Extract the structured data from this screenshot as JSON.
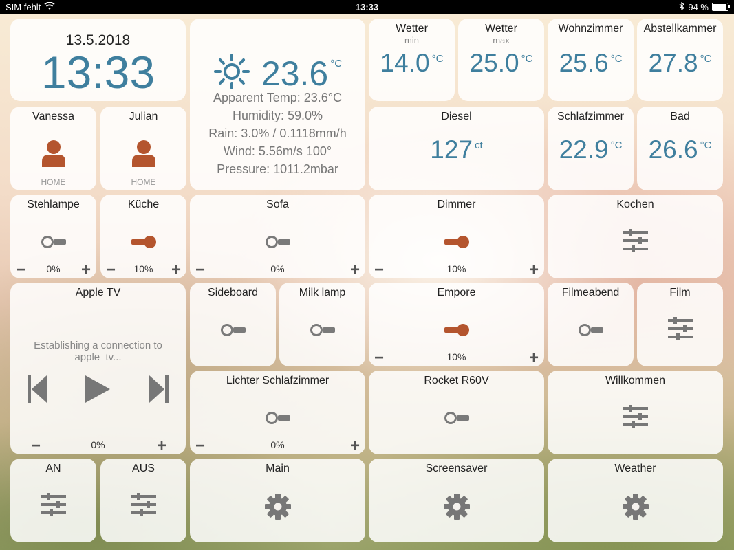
{
  "status_bar": {
    "carrier": "SIM fehlt",
    "time": "13:33",
    "battery": "94 %",
    "battery_level": 0.94
  },
  "clock": {
    "date": "13.5.2018",
    "time": "13:33"
  },
  "weather": {
    "temp": "23.6",
    "unit": "°C",
    "apparent": "Apparent Temp: 23.6°C",
    "humidity": "Humidity: 59.0%",
    "rain": "Rain: 3.0% / 0.1118mm/h",
    "wind": "Wind: 5.56m/s 100°",
    "pressure": "Pressure: 1011.2mbar",
    "icon": "sun-icon"
  },
  "sensors": {
    "wetter_min": {
      "title": "Wetter",
      "sub": "min",
      "value": "14.0",
      "unit": "°C"
    },
    "wetter_max": {
      "title": "Wetter",
      "sub": "max",
      "value": "25.0",
      "unit": "°C"
    },
    "wohnzimmer": {
      "title": "Wohnzimmer",
      "value": "25.6",
      "unit": "°C"
    },
    "abstellkammer": {
      "title": "Abstellkammer",
      "value": "27.8",
      "unit": "°C"
    },
    "diesel": {
      "title": "Diesel",
      "value": "127",
      "unit": "ct"
    },
    "schlafzimmer": {
      "title": "Schlafzimmer",
      "value": "22.9",
      "unit": "°C"
    },
    "bad": {
      "title": "Bad",
      "value": "26.6",
      "unit": "°C"
    }
  },
  "presence": {
    "vanessa": {
      "name": "Vanessa",
      "status": "HOME"
    },
    "julian": {
      "name": "Julian",
      "status": "HOME"
    }
  },
  "lights": {
    "stehlampe": {
      "title": "Stehlampe",
      "value": "0%",
      "on": false
    },
    "kueche": {
      "title": "Küche",
      "value": "10%",
      "on": true
    },
    "sofa": {
      "title": "Sofa",
      "value": "0%",
      "on": false
    },
    "dimmer": {
      "title": "Dimmer",
      "value": "10%",
      "on": true
    },
    "sideboard": {
      "title": "Sideboard",
      "on": false
    },
    "milk_lamp": {
      "title": "Milk lamp",
      "on": false
    },
    "empore": {
      "title": "Empore",
      "value": "10%",
      "on": true
    },
    "filmeabend": {
      "title": "Filmeabend",
      "on": false
    },
    "lichter_schlafzimmer": {
      "title": "Lichter Schlafzimmer",
      "value": "0%",
      "on": false
    },
    "rocket": {
      "title": "Rocket R60V",
      "on": false
    }
  },
  "scenes": {
    "kochen": {
      "title": "Kochen"
    },
    "film": {
      "title": "Film"
    },
    "willkommen": {
      "title": "Willkommen"
    },
    "an": {
      "title": "AN"
    },
    "aus": {
      "title": "AUS"
    }
  },
  "settings": {
    "main": {
      "title": "Main"
    },
    "screensaver": {
      "title": "Screensaver"
    },
    "weather": {
      "title": "Weather"
    }
  },
  "apple_tv": {
    "title": "Apple TV",
    "status": "Establishing a connection to apple_tv...",
    "volume": "0%"
  },
  "colors": {
    "accent": "#3f7f9e",
    "active": "#b4552e",
    "inactive": "#7a7a7a"
  },
  "stepper": {
    "minus": "−",
    "plus": "+"
  }
}
